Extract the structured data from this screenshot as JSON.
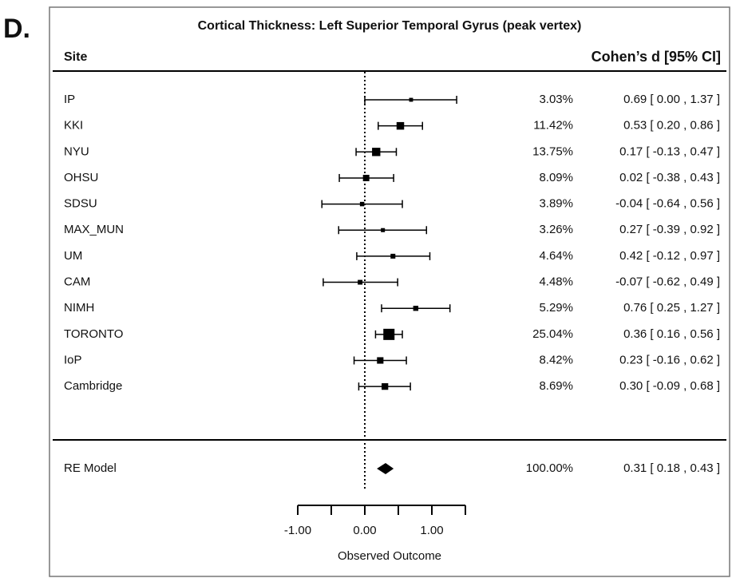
{
  "chart_data": {
    "type": "forest",
    "panel_label": "D.",
    "title": "Cortical Thickness: Left Superior Temporal Gyrus (peak vertex)",
    "header_left": "Site",
    "header_right": "Cohen’s d [95% CI]",
    "xlabel": "Observed Outcome",
    "categories": [
      "IP",
      "KKI",
      "NYU",
      "OHSU",
      "SDSU",
      "MAX_MUN",
      "UM",
      "CAM",
      "NIMH",
      "TORONTO",
      "IoP",
      "Cambridge"
    ],
    "values": [
      0.69,
      0.53,
      0.17,
      0.02,
      -0.04,
      0.27,
      0.42,
      -0.07,
      0.76,
      0.36,
      0.23,
      0.3
    ],
    "ci_lower": [
      0.0,
      0.2,
      -0.13,
      -0.38,
      -0.64,
      -0.39,
      -0.12,
      -0.62,
      0.25,
      0.16,
      -0.16,
      -0.09
    ],
    "ci_upper": [
      1.37,
      0.86,
      0.47,
      0.43,
      0.56,
      0.92,
      0.97,
      0.49,
      1.27,
      0.56,
      0.62,
      0.68
    ],
    "weights": [
      3.03,
      11.42,
      13.75,
      8.09,
      3.89,
      3.26,
      4.64,
      4.48,
      5.29,
      25.04,
      8.42,
      8.69
    ],
    "weight_labels": [
      "3.03%",
      "11.42%",
      "13.75%",
      "8.09%",
      "3.89%",
      "3.26%",
      "4.64%",
      "4.48%",
      "5.29%",
      "25.04%",
      "8.42%",
      "8.69%"
    ],
    "value_labels": [
      "0.69 [ 0.00 , 1.37 ]",
      "0.53 [ 0.20 , 0.86 ]",
      "0.17 [ -0.13 , 0.47 ]",
      "0.02 [ -0.38 , 0.43 ]",
      "-0.04 [ -0.64 , 0.56 ]",
      "0.27 [ -0.39 , 0.92 ]",
      "0.42 [ -0.12 , 0.97 ]",
      "-0.07 [ -0.62 , 0.49 ]",
      "0.76 [ 0.25 , 1.27 ]",
      "0.36 [ 0.16 , 0.56 ]",
      "0.23 [ -0.16 , 0.62 ]",
      "0.30 [ -0.09 , 0.68 ]"
    ],
    "summary": {
      "name": "RE Model",
      "value": 0.31,
      "ci_lower": 0.18,
      "ci_upper": 0.43,
      "weight": 100.0,
      "weight_label": "100.00%",
      "value_label": "0.31 [ 0.18 , 0.43 ]"
    },
    "xlim": [
      -1.5,
      2
    ],
    "xticks": [
      {
        "value": -1,
        "label": "-1.00"
      },
      {
        "value": 0,
        "label": "0.00"
      },
      {
        "value": 1,
        "label": "1.00"
      }
    ],
    "xticks_minor": [
      -0.5,
      0.5,
      1.5
    ],
    "reference_line": 0,
    "color": "#000000"
  }
}
